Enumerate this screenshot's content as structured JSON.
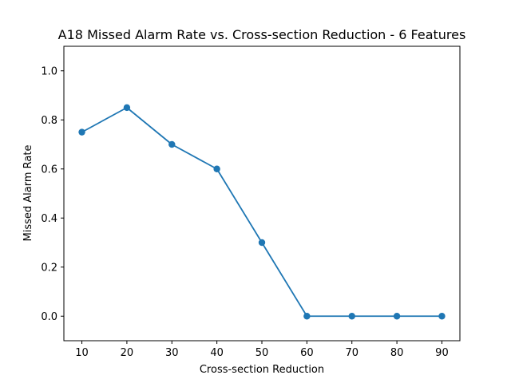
{
  "chart_data": {
    "type": "line",
    "title": "A18 Missed Alarm Rate vs. Cross-section Reduction - 6 Features",
    "xlabel": "Cross-section Reduction",
    "ylabel": "Missed Alarm Rate",
    "x": [
      10,
      20,
      30,
      40,
      50,
      60,
      70,
      80,
      90
    ],
    "series": [
      {
        "values": [
          0.75,
          0.85,
          0.7,
          0.6,
          0.3,
          0.0,
          0.0,
          0.0,
          0.0
        ]
      }
    ],
    "xlim": [
      6,
      94
    ],
    "ylim": [
      -0.1,
      1.1
    ],
    "xticks": [
      "10",
      "20",
      "30",
      "40",
      "50",
      "60",
      "70",
      "80",
      "90"
    ],
    "yticks": [
      "0.0",
      "0.2",
      "0.4",
      "0.6",
      "0.8",
      "1.0"
    ],
    "grid": false,
    "line_color": "#1f77b4",
    "marker": "circle"
  }
}
